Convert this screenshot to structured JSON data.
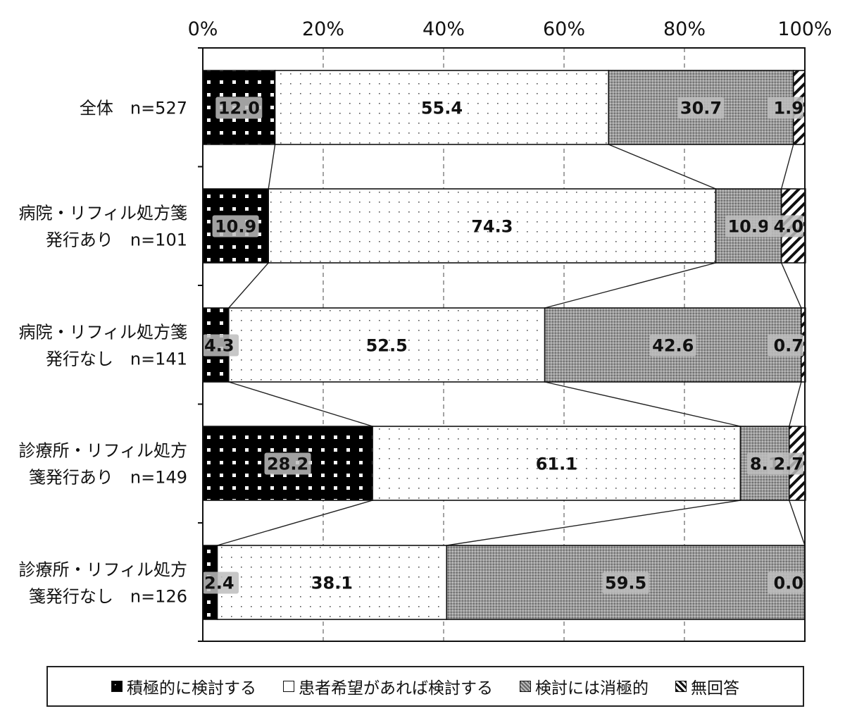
{
  "chart_data": {
    "type": "bar",
    "orientation": "horizontal",
    "stacked": "percent",
    "categories": [
      [
        "全体　n=527"
      ],
      [
        "病院・リフィル処方箋",
        "発行あり　n=101"
      ],
      [
        "病院・リフィル処方箋",
        "発行なし　n=141"
      ],
      [
        "診療所・リフィル処方",
        "箋発行あり　n=149"
      ],
      [
        "診療所・リフィル処方",
        "箋発行なし　n=126"
      ]
    ],
    "series": [
      {
        "name": "積極的に検討する",
        "values": [
          12.0,
          10.9,
          4.3,
          28.2,
          2.4
        ],
        "labels": [
          "12.0",
          "10.9",
          "4.3",
          "28.2",
          "2.4"
        ],
        "pattern": "dots-on-black"
      },
      {
        "name": "患者希望があれば検討する",
        "values": [
          55.4,
          74.3,
          52.5,
          61.1,
          38.1
        ],
        "labels": [
          "55.4",
          "74.3",
          "52.5",
          "61.1",
          "38.1"
        ],
        "pattern": "sparse-dots"
      },
      {
        "name": "検討には消極的",
        "values": [
          30.7,
          10.9,
          42.6,
          8.1,
          59.5
        ],
        "labels": [
          "30.7",
          "10.9",
          "42.6",
          "8.1",
          "59.5"
        ],
        "pattern": "dense-gray"
      },
      {
        "name": "無回答",
        "values": [
          1.9,
          4.0,
          0.7,
          2.7,
          0.0
        ],
        "labels": [
          "1.9",
          "4.0",
          "0.7",
          "2.7",
          "0.0"
        ],
        "pattern": "diagonal-stripes"
      }
    ],
    "x_ticks": [
      "0%",
      "20%",
      "40%",
      "60%",
      "80%",
      "100%"
    ],
    "xlim": [
      0,
      100
    ],
    "grid": "vertical-dashed",
    "legend": "bottom",
    "series_lines": true
  }
}
